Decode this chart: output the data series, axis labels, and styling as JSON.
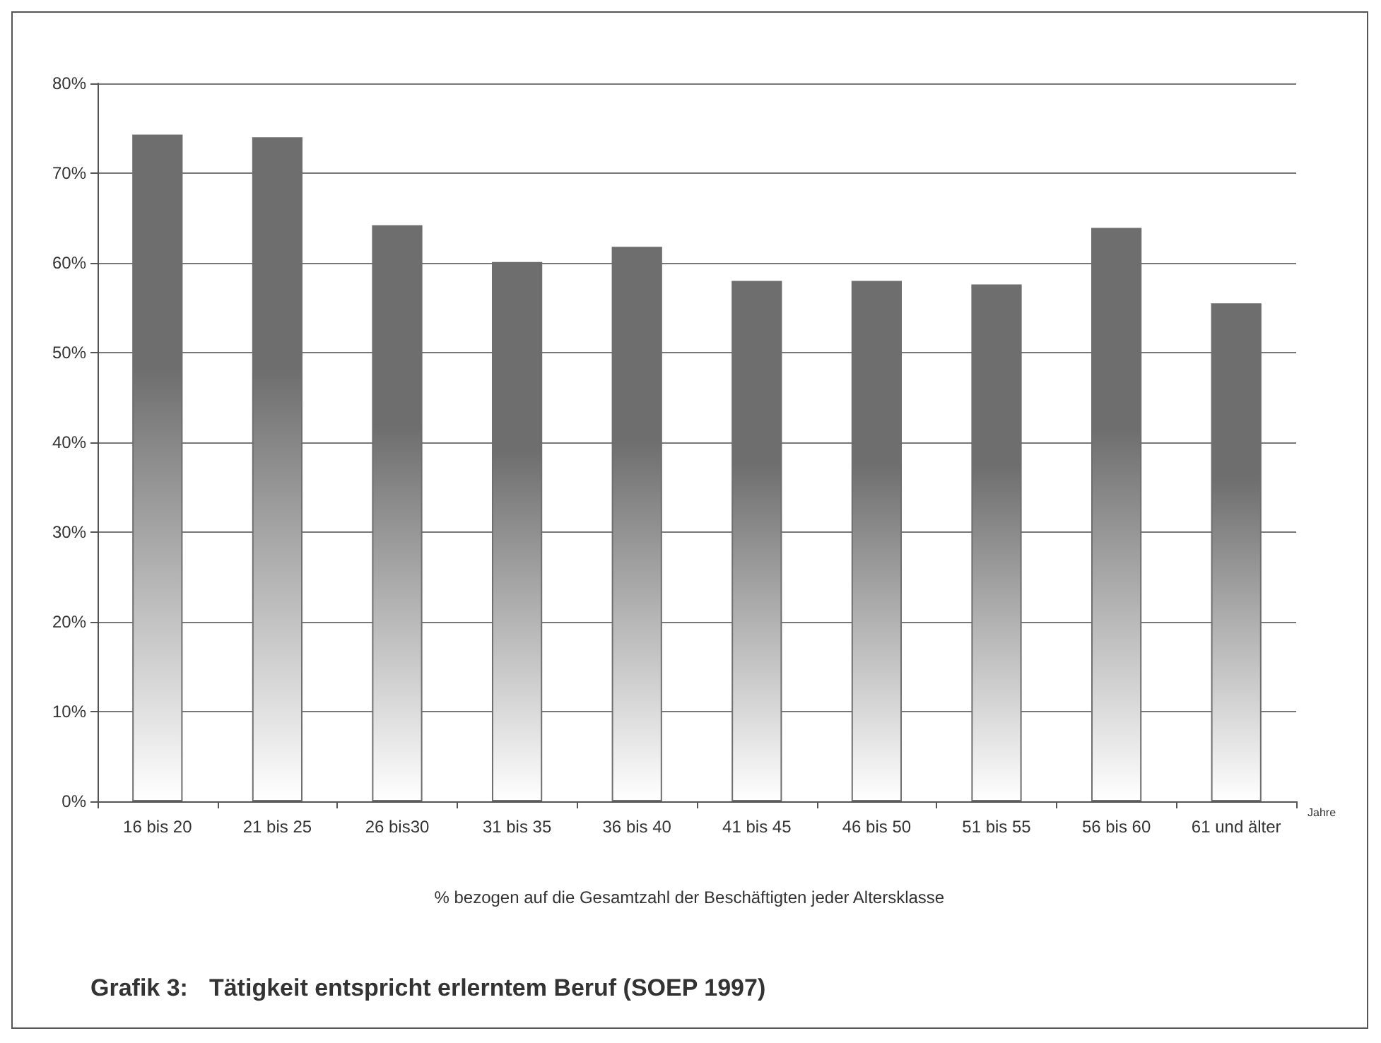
{
  "chart_data": {
    "type": "bar",
    "title": "Grafik 3: Tätigkeit entspricht erlerntem Beruf (SOEP 1997)",
    "xlabel": "Jahre",
    "annotations": [
      "% bezogen auf die Gesamtzahl der Beschäftigten jeder Altersklasse"
    ],
    "categories": [
      "16 bis 20",
      "21 bis 25",
      "26 bis30",
      "31 bis 35",
      "36 bis 40",
      "41 bis 45",
      "46 bis 50",
      "51 bis 55",
      "56 bis 60",
      "61 und älter"
    ],
    "values": [
      74.3,
      74.0,
      64.2,
      60.1,
      61.8,
      58.0,
      58.0,
      57.6,
      63.9,
      55.5
    ],
    "color": "#6e6e6e",
    "ylim": [
      0,
      80
    ],
    "yticks": [
      {
        "value": 0,
        "label": "0%"
      },
      {
        "value": 10,
        "label": "10%"
      },
      {
        "value": 20,
        "label": "20%"
      },
      {
        "value": 30,
        "label": "30%"
      },
      {
        "value": 40,
        "label": "40%"
      },
      {
        "value": 50,
        "label": "50%"
      },
      {
        "value": 60,
        "label": "60%"
      },
      {
        "value": 70,
        "label": "70%"
      },
      {
        "value": 80,
        "label": "80%"
      }
    ],
    "grid": "y"
  }
}
